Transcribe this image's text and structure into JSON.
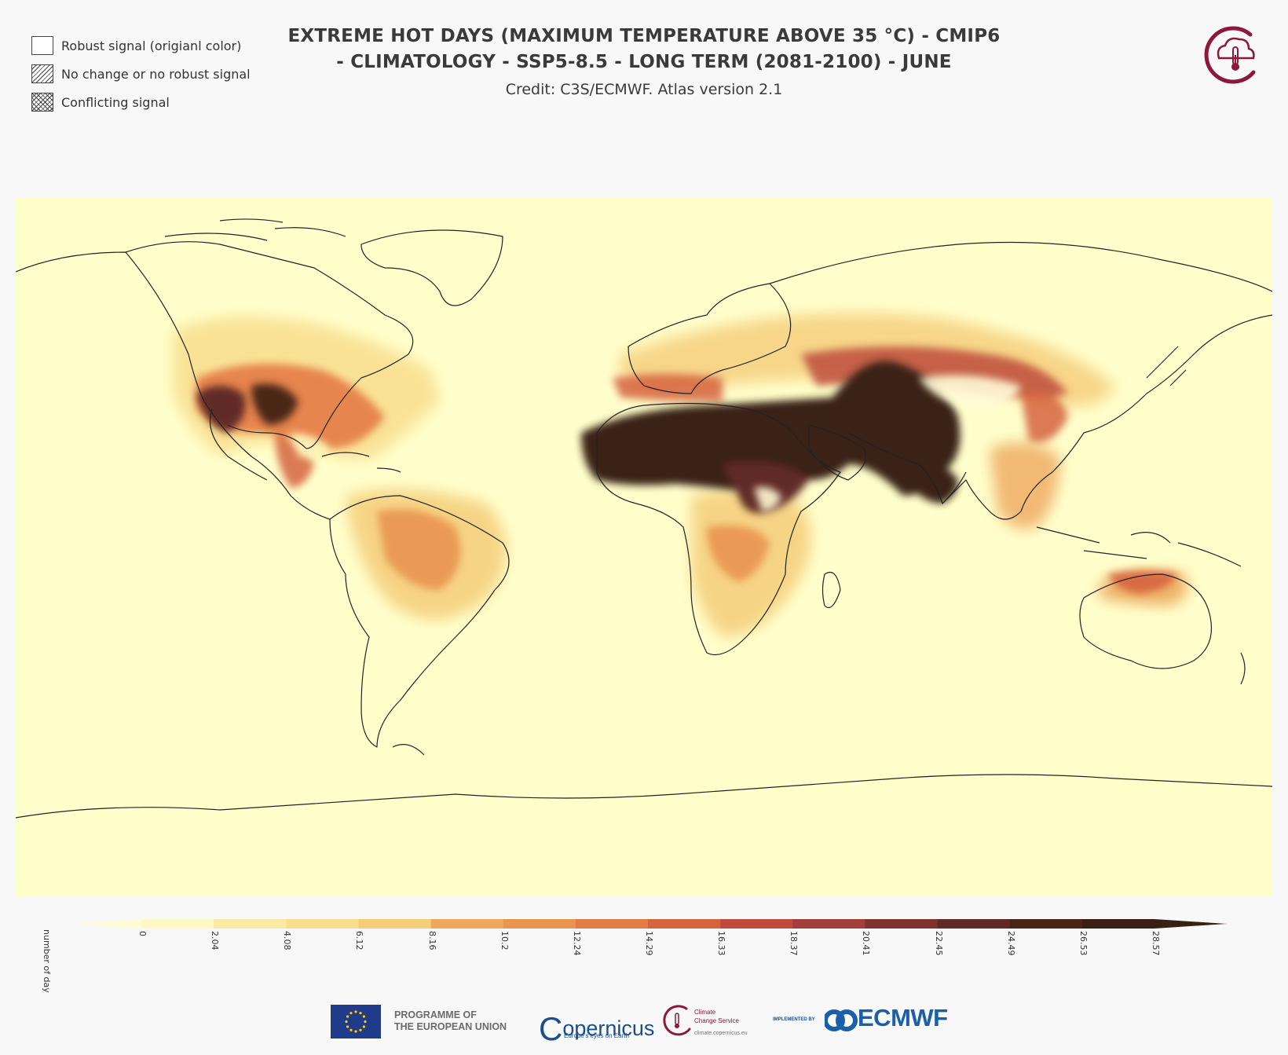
{
  "legend": {
    "items": [
      {
        "label": "Robust signal (origianl color)"
      },
      {
        "label": "No change or no robust signal"
      },
      {
        "label": "Conflicting signal"
      }
    ]
  },
  "header": {
    "title_line1": "EXTREME HOT DAYS (MAXIMUM TEMPERATURE ABOVE 35 °C) - CMIP6",
    "title_line2": "- CLIMATOLOGY - SSP5-8.5 - LONG TERM (2081-2100) - JUNE",
    "credit": "Credit: C3S/ECMWF. Atlas version 2.1"
  },
  "colorbar": {
    "unit_label": "number of day",
    "ticks": [
      "0",
      "2.04",
      "4.08",
      "6.12",
      "8.16",
      "10.2",
      "12.24",
      "14.29",
      "16.33",
      "18.37",
      "20.41",
      "22.45",
      "24.49",
      "26.53",
      "28.57"
    ],
    "colors": [
      "#fff7c4",
      "#fbe9a4",
      "#f8dd8c",
      "#f5cc78",
      "#eda85c",
      "#e9944f",
      "#e47c45",
      "#d5633e",
      "#bd4c3d",
      "#a33f3a",
      "#7e3230",
      "#602a25",
      "#4a2619",
      "#3a2012"
    ],
    "extend_color": "#3a2012",
    "low_color": "#fffbd6"
  },
  "map": {
    "background": "#ffffcc",
    "coast_color": "#222222"
  },
  "footer": {
    "eu_line1": "PROGRAMME OF",
    "eu_line2": "THE EUROPEAN UNION",
    "copernicus": "opernicus",
    "copernicus_c": "C",
    "copernicus_sub": "Europe's eyes on Earth",
    "c3s_line1": "Climate",
    "c3s_line2": "Change Service",
    "c3s_url": "climate.copernicus.eu",
    "implemented_by": "IMPLEMENTED BY",
    "ecmwf": "ECMWF"
  }
}
